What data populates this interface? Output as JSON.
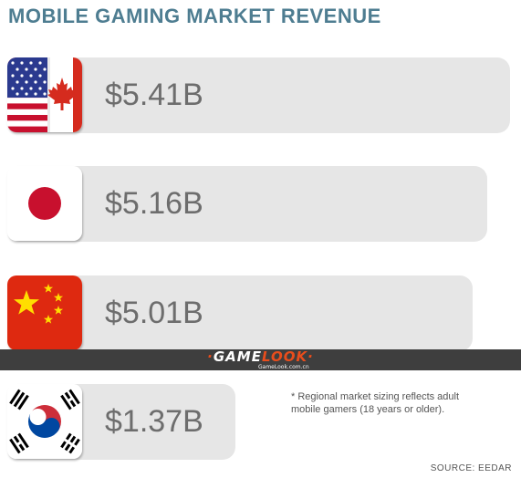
{
  "chart_data": {
    "type": "bar",
    "title": "MOBILE GAMING MARKET REVENUE",
    "unit": "$B",
    "categories": [
      "us-canada",
      "japan",
      "china",
      "south-korea"
    ],
    "values": [
      5.41,
      5.16,
      5.01,
      1.37
    ],
    "value_labels": [
      "$5.41B",
      "$5.16B",
      "$5.01B",
      "$1.37B"
    ],
    "bar_color": "#e6e6e6",
    "label_color": "#6d6d6d"
  },
  "footnote": "* Regional market sizing reflects adult\n   mobile gamers (18 years or older).",
  "source": "SOURCE: EEDAR",
  "watermark": {
    "logo": "GAMELOOK",
    "url": "GameLook.com.cn"
  }
}
